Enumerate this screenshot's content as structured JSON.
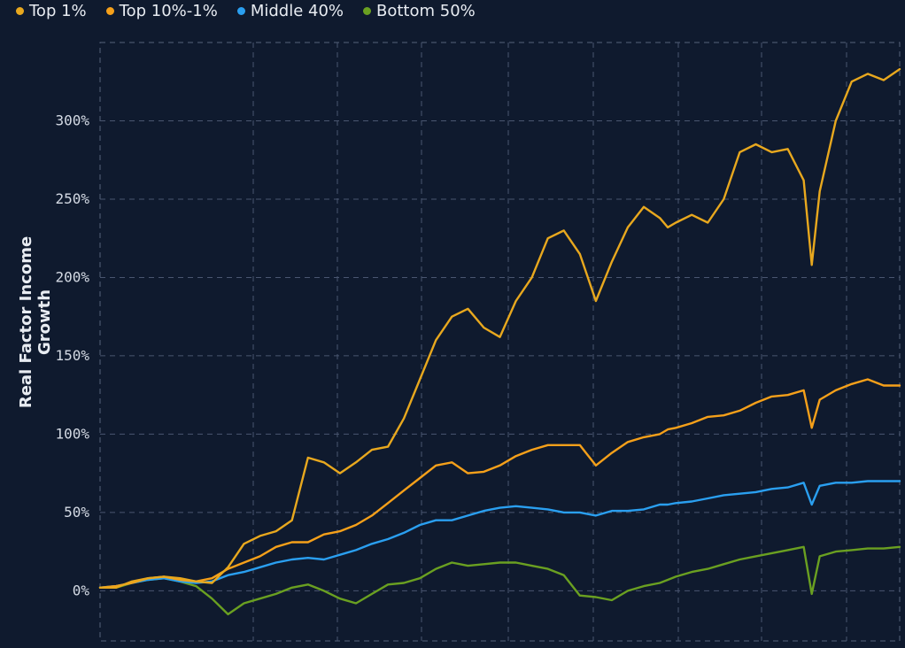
{
  "chart_data": {
    "type": "line",
    "ylabel": "Real Factor Income Growth",
    "y_ticks": [
      "0%",
      "50%",
      "100%",
      "150%",
      "200%",
      "250%",
      "300%"
    ],
    "y_tick_values": [
      0,
      50,
      100,
      150,
      200,
      250,
      300
    ],
    "ylim": [
      -32,
      350
    ],
    "xlim": [
      0,
      100
    ],
    "grid": true,
    "legend_position": "top-left",
    "series": [
      {
        "name": "Top 1%",
        "color": "#e8a81e",
        "x": [
          0,
          2,
          4,
          6,
          8,
          10,
          12,
          14,
          16,
          18,
          20,
          22,
          24,
          26,
          28,
          30,
          32,
          34,
          36,
          38,
          40,
          42,
          44,
          46,
          48,
          50,
          52,
          54,
          56,
          58,
          60,
          62,
          64,
          66,
          68,
          70,
          71,
          72,
          74,
          76,
          78,
          80,
          82,
          84,
          86,
          88,
          89,
          90,
          92,
          94,
          96,
          98,
          100
        ],
        "y": [
          2,
          2,
          6,
          8,
          9,
          8,
          6,
          5,
          15,
          30,
          35,
          38,
          45,
          85,
          82,
          75,
          82,
          90,
          92,
          110,
          135,
          160,
          175,
          180,
          168,
          162,
          185,
          200,
          225,
          230,
          215,
          185,
          210,
          232,
          245,
          238,
          232,
          235,
          240,
          235,
          250,
          280,
          285,
          280,
          282,
          262,
          208,
          255,
          300,
          325,
          330,
          326,
          333
        ]
      },
      {
        "name": "Top 10%-1%",
        "color": "#f5a01a",
        "x": [
          0,
          2,
          4,
          6,
          8,
          10,
          12,
          14,
          16,
          18,
          20,
          22,
          24,
          26,
          28,
          30,
          32,
          34,
          36,
          38,
          40,
          42,
          44,
          46,
          48,
          50,
          52,
          54,
          56,
          58,
          60,
          62,
          64,
          66,
          68,
          70,
          71,
          72,
          74,
          76,
          78,
          80,
          82,
          84,
          86,
          88,
          89,
          90,
          92,
          94,
          96,
          98,
          100
        ],
        "y": [
          2,
          3,
          5,
          8,
          9,
          7,
          6,
          8,
          14,
          18,
          22,
          28,
          31,
          31,
          36,
          38,
          42,
          48,
          56,
          64,
          72,
          80,
          82,
          75,
          76,
          80,
          86,
          90,
          93,
          93,
          93,
          80,
          88,
          95,
          98,
          100,
          103,
          104,
          107,
          111,
          112,
          115,
          120,
          124,
          125,
          128,
          104,
          122,
          128,
          132,
          135,
          131,
          131
        ]
      },
      {
        "name": "Middle 40%",
        "color": "#2a9ff0",
        "x": [
          0,
          2,
          4,
          6,
          8,
          10,
          12,
          14,
          16,
          18,
          20,
          22,
          24,
          26,
          28,
          30,
          32,
          34,
          36,
          38,
          40,
          42,
          44,
          46,
          48,
          50,
          52,
          54,
          56,
          58,
          60,
          62,
          64,
          66,
          68,
          70,
          71,
          72,
          74,
          76,
          78,
          80,
          82,
          84,
          86,
          88,
          89,
          90,
          92,
          94,
          96,
          98,
          100
        ],
        "y": [
          2,
          3,
          5,
          7,
          8,
          6,
          5,
          6,
          10,
          12,
          15,
          18,
          20,
          21,
          20,
          23,
          26,
          30,
          33,
          37,
          42,
          45,
          45,
          48,
          51,
          53,
          54,
          53,
          52,
          50,
          50,
          48,
          51,
          51,
          52,
          55,
          55,
          56,
          57,
          59,
          61,
          62,
          63,
          65,
          66,
          69,
          55,
          67,
          69,
          69,
          70,
          70,
          70
        ]
      },
      {
        "name": "Bottom 50%",
        "color": "#6aa021",
        "x": [
          0,
          2,
          4,
          6,
          8,
          10,
          12,
          14,
          16,
          18,
          20,
          22,
          24,
          26,
          28,
          30,
          32,
          34,
          36,
          38,
          40,
          42,
          44,
          46,
          48,
          50,
          52,
          54,
          56,
          58,
          60,
          62,
          64,
          66,
          68,
          70,
          71,
          72,
          74,
          76,
          78,
          80,
          82,
          84,
          86,
          88,
          89,
          90,
          92,
          94,
          96,
          98,
          100
        ],
        "y": [
          2,
          2,
          5,
          7,
          8,
          6,
          3,
          -5,
          -15,
          -8,
          -5,
          -2,
          2,
          4,
          0,
          -5,
          -8,
          -2,
          4,
          5,
          8,
          14,
          18,
          16,
          17,
          18,
          18,
          16,
          14,
          10,
          -3,
          -4,
          -6,
          0,
          3,
          5,
          7,
          9,
          12,
          14,
          17,
          20,
          22,
          24,
          26,
          28,
          -2,
          22,
          25,
          26,
          27,
          27,
          28
        ]
      }
    ]
  }
}
